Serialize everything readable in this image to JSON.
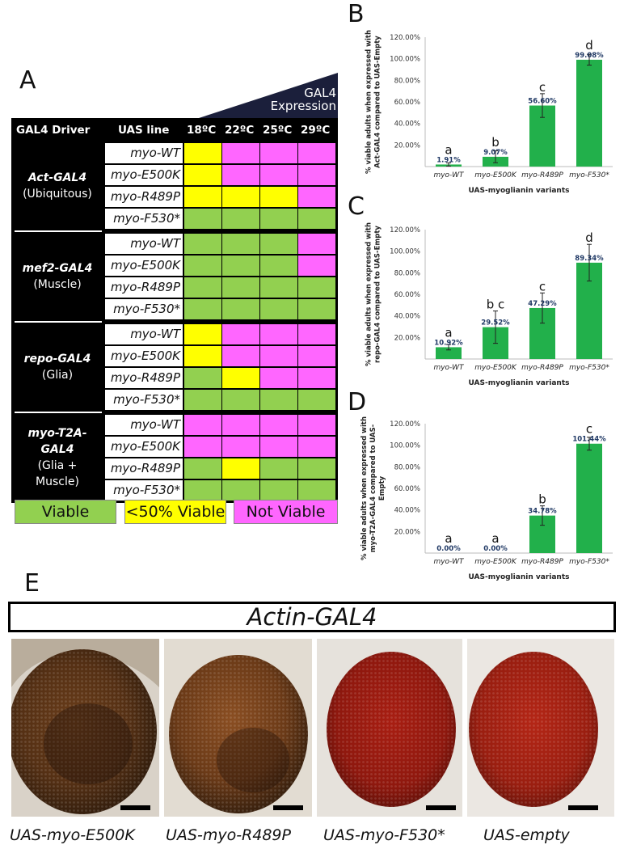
{
  "panel_a": {
    "letter": "A",
    "expression_label_1": "GAL4",
    "expression_label_2": "Expression",
    "headers": {
      "driver": "GAL4 Driver",
      "uas": "UAS line",
      "temps": [
        "18ºC",
        "22ºC",
        "25ºC",
        "29ºC"
      ]
    },
    "drivers": [
      {
        "name": "Act-GAL4",
        "desc": "(Ubiquitous)",
        "rows": [
          {
            "uas": "myo-WT",
            "cells": [
              "Y",
              "N",
              "N",
              "N"
            ]
          },
          {
            "uas": "myo-E500K",
            "cells": [
              "Y",
              "N",
              "N",
              "N"
            ]
          },
          {
            "uas": "myo-R489P",
            "cells": [
              "Y",
              "Y",
              "Y",
              "N"
            ]
          },
          {
            "uas": "myo-F530*",
            "cells": [
              "V",
              "V",
              "V",
              "V"
            ]
          }
        ]
      },
      {
        "name": "mef2-GAL4",
        "desc": "(Muscle)",
        "rows": [
          {
            "uas": "myo-WT",
            "cells": [
              "V",
              "V",
              "V",
              "N"
            ]
          },
          {
            "uas": "myo-E500K",
            "cells": [
              "V",
              "V",
              "V",
              "N"
            ]
          },
          {
            "uas": "myo-R489P",
            "cells": [
              "V",
              "V",
              "V",
              "V"
            ]
          },
          {
            "uas": "myo-F530*",
            "cells": [
              "V",
              "V",
              "V",
              "V"
            ]
          }
        ]
      },
      {
        "name": "repo-GAL4",
        "desc": "(Glia)",
        "rows": [
          {
            "uas": "myo-WT",
            "cells": [
              "Y",
              "N",
              "N",
              "N"
            ]
          },
          {
            "uas": "myo-E500K",
            "cells": [
              "Y",
              "N",
              "N",
              "N"
            ]
          },
          {
            "uas": "myo-R489P",
            "cells": [
              "V",
              "Y",
              "N",
              "N"
            ]
          },
          {
            "uas": "myo-F530*",
            "cells": [
              "V",
              "V",
              "V",
              "V"
            ]
          }
        ]
      },
      {
        "name": "myo-T2A-GAL4",
        "name_lines": [
          "myo-T2A-",
          "GAL4"
        ],
        "desc": "(Glia +",
        "desc2": "Muscle)",
        "rows": [
          {
            "uas": "myo-WT",
            "cells": [
              "N",
              "N",
              "N",
              "N"
            ]
          },
          {
            "uas": "myo-E500K",
            "cells": [
              "N",
              "N",
              "N",
              "N"
            ]
          },
          {
            "uas": "myo-R489P",
            "cells": [
              "V",
              "Y",
              "V",
              "V"
            ]
          },
          {
            "uas": "myo-F530*",
            "cells": [
              "V",
              "V",
              "V",
              "V"
            ]
          }
        ]
      }
    ],
    "legend": {
      "viable": "Viable",
      "partial": "<50% Viable",
      "not_viable": "Not Viable"
    },
    "colors": {
      "viable": "#92d050",
      "partial": "#ffff00",
      "not_viable": "#ff66ff"
    }
  },
  "chart_data": [
    {
      "letter": "B",
      "type": "bar",
      "categories": [
        "myo-WT",
        "myo-E500K",
        "myo-R489P",
        "myo-F530*"
      ],
      "values": [
        1.91,
        9.07,
        56.6,
        99.08
      ],
      "data_labels": [
        "1.91%",
        "9.07%",
        "56.60%",
        "99.08%"
      ],
      "error": [
        1.5,
        5.5,
        11,
        5
      ],
      "sig_letters": [
        "a",
        "b",
        "c",
        "d"
      ],
      "ylim": [
        0,
        120
      ],
      "yticks": [
        "20.00%",
        "40.00%",
        "60.00%",
        "80.00%",
        "100.00%",
        "120.00%"
      ],
      "ylabel_lines": [
        "% viable adults when expressed with",
        "Act-GAL4 compared to UAS-Empty"
      ],
      "xlabel": "UAS-myoglianin variants",
      "color": "#22b04b"
    },
    {
      "letter": "C",
      "type": "bar",
      "categories": [
        "myo-WT",
        "myo-E500K",
        "myo-R489P",
        "myo-F530*"
      ],
      "values": [
        10.92,
        29.52,
        47.29,
        89.34
      ],
      "data_labels": [
        "10.92%",
        "29.52%",
        "47.29%",
        "89.34%"
      ],
      "error": [
        2.5,
        15,
        14,
        17
      ],
      "sig_letters": [
        "a",
        "b c",
        "c",
        "d"
      ],
      "ylim": [
        0,
        120
      ],
      "yticks": [
        "20.00%",
        "40.00%",
        "60.00%",
        "80.00%",
        "100.00%",
        "120.00%"
      ],
      "ylabel_lines": [
        "% viable adults when expressed with",
        "repo-GAL4 compared to UAS-Empty"
      ],
      "xlabel": "UAS-myoglianin variants",
      "color": "#22b04b"
    },
    {
      "letter": "D",
      "type": "bar",
      "categories": [
        "myo-WT",
        "myo-E500K",
        "myo-R489P",
        "myo-F530*"
      ],
      "values": [
        0.0,
        0.0,
        34.78,
        101.44
      ],
      "data_labels": [
        "0.00%",
        "0.00%",
        "34.78%",
        "101.44%"
      ],
      "error": [
        0,
        0,
        9,
        6
      ],
      "sig_letters": [
        "a",
        "a",
        "b",
        "c"
      ],
      "ylim": [
        0,
        120
      ],
      "yticks": [
        "20.00%",
        "40.00%",
        "60.00%",
        "80.00%",
        "100.00%",
        "120.00%"
      ],
      "ylabel_lines": [
        "% viable adults when expressed with",
        "myo-T2A-GAL4 compared to UAS-",
        "Empty"
      ],
      "xlabel": "UAS-myoglianin variants",
      "color": "#22b04b"
    }
  ],
  "panel_e": {
    "letter": "E",
    "title": "Actin-GAL4",
    "labels": [
      "UAS-myo-E500K",
      "UAS-myo-R489P",
      "UAS-myo-F530*",
      "UAS-empty"
    ]
  }
}
